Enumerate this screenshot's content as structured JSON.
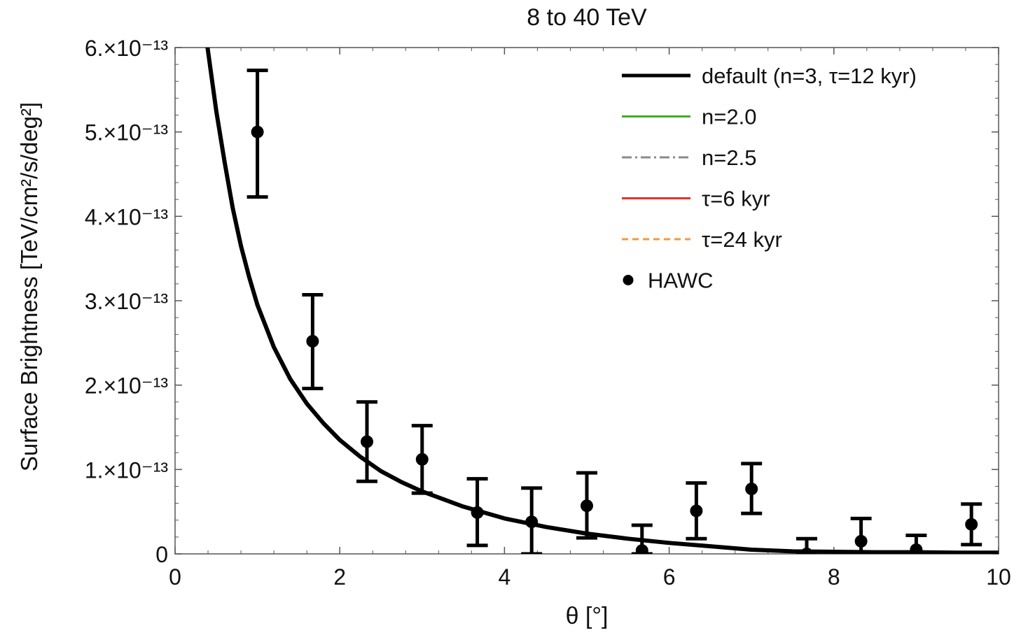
{
  "chart_data": {
    "type": "scatter",
    "title": "8 to 40 TeV",
    "xlabel": "θ [°]",
    "ylabel": "Surface Brightness [TeV/cm²/s/deg²]",
    "xlim": [
      0,
      10
    ],
    "ylim": [
      0,
      6e-13
    ],
    "x_ticks": [
      "0",
      "2",
      "4",
      "6",
      "8",
      "10"
    ],
    "y_ticks": [
      {
        "value": 0,
        "label": "0"
      },
      {
        "value": 1e-13,
        "label": "1.×10⁻¹³"
      },
      {
        "value": 2e-13,
        "label": "2.×10⁻¹³"
      },
      {
        "value": 3e-13,
        "label": "3.×10⁻¹³"
      },
      {
        "value": 4e-13,
        "label": "4.×10⁻¹³"
      },
      {
        "value": 5e-13,
        "label": "5.×10⁻¹³"
      },
      {
        "value": 6e-13,
        "label": "6.×10⁻¹³"
      }
    ],
    "series": [
      {
        "name": "default (n=3, τ=12 kyr)",
        "kind": "line",
        "color": "#000000",
        "style": "solid",
        "x": [
          0.38,
          0.5,
          0.6,
          0.7,
          0.8,
          0.9,
          1.0,
          1.2,
          1.4,
          1.6,
          1.8,
          2.0,
          2.25,
          2.5,
          2.75,
          3.0,
          3.5,
          4.0,
          4.5,
          5.0,
          5.5,
          6.0,
          6.5,
          7.0,
          7.5,
          8.0,
          8.5,
          9.0,
          9.5,
          10.0
        ],
        "y": [
          6.1e-13,
          5.25e-13,
          4.65e-13,
          4.1e-13,
          3.65e-13,
          3.28e-13,
          2.95e-13,
          2.45e-13,
          2.07e-13,
          1.78e-13,
          1.55e-13,
          1.35e-13,
          1.15e-13,
          9.8e-14,
          8.5e-14,
          7.4e-14,
          5.6e-14,
          4.2e-14,
          3.2e-14,
          2.4e-14,
          1.8e-14,
          1.3e-14,
          9e-15,
          5e-15,
          3e-15,
          2.5e-15,
          2e-15,
          2e-15,
          1.5e-15,
          1.5e-15
        ]
      },
      {
        "name": "n=2.0",
        "kind": "line",
        "color": "#4aa82f",
        "style": "solid",
        "legend_only": true
      },
      {
        "name": "n=2.5",
        "kind": "line",
        "color": "#8a8a8a",
        "style": "dashdot",
        "legend_only": true
      },
      {
        "name": "τ=6 kyr",
        "kind": "line",
        "color": "#e5352b",
        "style": "solid",
        "legend_only": true
      },
      {
        "name": "τ=24 kyr",
        "kind": "line",
        "color": "#f39a3c",
        "style": "dashed",
        "legend_only": true
      },
      {
        "name": "HAWC",
        "kind": "points",
        "color": "#000000",
        "x": [
          1.0,
          1.67,
          2.33,
          3.0,
          3.67,
          4.33,
          5.0,
          5.67,
          6.33,
          7.0,
          7.67,
          8.33,
          9.0,
          9.67
        ],
        "y": [
          5e-13,
          2.52e-13,
          1.33e-13,
          1.12e-13,
          4.9e-14,
          3.8e-14,
          5.7e-14,
          4e-15,
          5.1e-14,
          7.7e-14,
          0.0,
          1.5e-14,
          5e-15,
          3.5e-14
        ],
        "err_low": [
          4.23e-13,
          1.96e-13,
          8.6e-14,
          7.2e-14,
          1e-14,
          0.0,
          1.9e-14,
          0.0,
          1.8e-14,
          4.8e-14,
          0.0,
          0.0,
          0.0,
          1.1e-14
        ],
        "err_high": [
          5.73e-13,
          3.07e-13,
          1.8e-13,
          1.52e-13,
          8.9e-14,
          7.8e-14,
          9.6e-14,
          3.4e-14,
          8.4e-14,
          1.07e-13,
          1.8e-14,
          4.2e-14,
          2.2e-14,
          5.9e-14
        ]
      }
    ],
    "legend_position": "top-right",
    "grid": false
  }
}
